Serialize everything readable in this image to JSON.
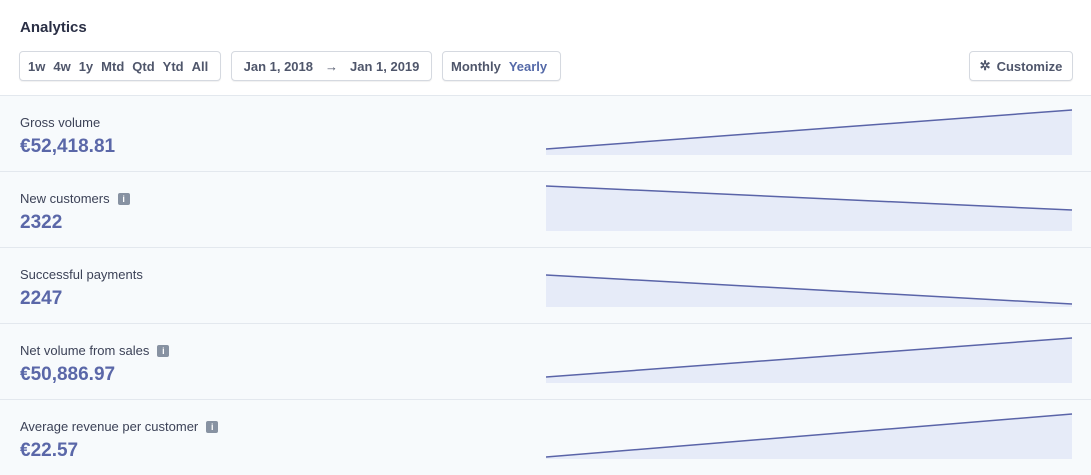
{
  "header": {
    "title": "Analytics"
  },
  "ranges": [
    "1w",
    "4w",
    "1y",
    "Mtd",
    "Qtd",
    "Ytd",
    "All"
  ],
  "date_range": {
    "start": "Jan 1, 2018",
    "arrow": "→",
    "end": "Jan 1, 2019"
  },
  "interval": {
    "options": [
      "Monthly",
      "Yearly"
    ],
    "selected": "Yearly"
  },
  "customize": {
    "label": "Customize",
    "icon": "gear-icon"
  },
  "colors": {
    "accent": "#5a67a8",
    "line": "#5a64a8",
    "fill": "#e6ebf8"
  },
  "metrics": [
    {
      "label": "Gross volume",
      "value": "€52,418.81",
      "info": false,
      "trend": "up"
    },
    {
      "label": "New customers",
      "value": "2322",
      "info": true,
      "trend": "down"
    },
    {
      "label": "Successful payments",
      "value": "2247",
      "info": false,
      "trend": "down"
    },
    {
      "label": "Net volume from sales",
      "value": "€50,886.97",
      "info": true,
      "trend": "up"
    },
    {
      "label": "Average revenue per customer",
      "value": "€22.57",
      "info": true,
      "trend": "up"
    }
  ]
}
